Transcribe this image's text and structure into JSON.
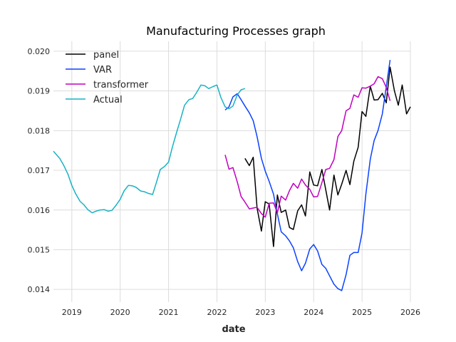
{
  "chart_data": {
    "type": "line",
    "title": "Manufacturing Processes graph",
    "xlabel": "date",
    "ylabel": "",
    "x_ticks": [
      "2019",
      "2020",
      "2021",
      "2022",
      "2023",
      "2024",
      "2025",
      "2026"
    ],
    "y_ticks": [
      "0.014",
      "0.015",
      "0.016",
      "0.017",
      "0.018",
      "0.019",
      "0.020"
    ],
    "xlim": [
      2018.62,
      2026.0
    ],
    "ylim": [
      0.01368,
      0.02025
    ],
    "grid": true,
    "legend_position": "top-left",
    "series": [
      {
        "name": "panel",
        "color": "#000000",
        "points": [
          [
            2022.58,
            0.0173
          ],
          [
            2022.67,
            0.01712
          ],
          [
            2022.75,
            0.01733
          ],
          [
            2022.83,
            0.01605
          ],
          [
            2022.92,
            0.01547
          ],
          [
            2023.0,
            0.01621
          ],
          [
            2023.08,
            0.01615
          ],
          [
            2023.17,
            0.01508
          ],
          [
            2023.25,
            0.01638
          ],
          [
            2023.33,
            0.01594
          ],
          [
            2023.42,
            0.016
          ],
          [
            2023.5,
            0.01556
          ],
          [
            2023.58,
            0.01551
          ],
          [
            2023.67,
            0.01598
          ],
          [
            2023.75,
            0.01613
          ],
          [
            2023.83,
            0.01585
          ],
          [
            2023.92,
            0.01696
          ],
          [
            2024.0,
            0.01663
          ],
          [
            2024.08,
            0.01661
          ],
          [
            2024.17,
            0.01702
          ],
          [
            2024.25,
            0.01651
          ],
          [
            2024.33,
            0.016
          ],
          [
            2024.42,
            0.01688
          ],
          [
            2024.5,
            0.01638
          ],
          [
            2024.58,
            0.01665
          ],
          [
            2024.67,
            0.017
          ],
          [
            2024.75,
            0.01664
          ],
          [
            2024.83,
            0.01723
          ],
          [
            2024.92,
            0.01758
          ],
          [
            2025.0,
            0.01848
          ],
          [
            2025.08,
            0.01836
          ],
          [
            2025.17,
            0.01912
          ],
          [
            2025.25,
            0.01877
          ],
          [
            2025.33,
            0.01878
          ],
          [
            2025.42,
            0.01894
          ],
          [
            2025.5,
            0.0187
          ],
          [
            2025.58,
            0.0196
          ],
          [
            2025.67,
            0.019
          ],
          [
            2025.75,
            0.01864
          ],
          [
            2025.83,
            0.01915
          ],
          [
            2025.92,
            0.01842
          ],
          [
            2026.0,
            0.0186
          ]
        ]
      },
      {
        "name": "VAR",
        "color": "#0a42ff",
        "points": [
          [
            2022.17,
            0.01852
          ],
          [
            2022.25,
            0.0186
          ],
          [
            2022.33,
            0.01885
          ],
          [
            2022.42,
            0.01893
          ],
          [
            2022.5,
            0.01878
          ],
          [
            2022.58,
            0.01862
          ],
          [
            2022.67,
            0.01845
          ],
          [
            2022.75,
            0.01825
          ],
          [
            2022.83,
            0.01785
          ],
          [
            2022.92,
            0.0173
          ],
          [
            2023.0,
            0.01698
          ],
          [
            2023.08,
            0.01672
          ],
          [
            2023.17,
            0.0164
          ],
          [
            2023.25,
            0.0159
          ],
          [
            2023.33,
            0.01545
          ],
          [
            2023.42,
            0.01535
          ],
          [
            2023.5,
            0.01522
          ],
          [
            2023.58,
            0.01505
          ],
          [
            2023.67,
            0.0147
          ],
          [
            2023.75,
            0.01447
          ],
          [
            2023.83,
            0.01466
          ],
          [
            2023.92,
            0.01502
          ],
          [
            2024.0,
            0.01513
          ],
          [
            2024.08,
            0.01497
          ],
          [
            2024.17,
            0.01463
          ],
          [
            2024.25,
            0.01453
          ],
          [
            2024.33,
            0.01434
          ],
          [
            2024.42,
            0.01413
          ],
          [
            2024.5,
            0.01402
          ],
          [
            2024.58,
            0.01397
          ],
          [
            2024.67,
            0.01437
          ],
          [
            2024.75,
            0.01486
          ],
          [
            2024.83,
            0.01493
          ],
          [
            2024.92,
            0.01493
          ],
          [
            2025.0,
            0.01542
          ],
          [
            2025.08,
            0.0164
          ],
          [
            2025.17,
            0.01728
          ],
          [
            2025.25,
            0.01775
          ],
          [
            2025.33,
            0.018
          ],
          [
            2025.42,
            0.01842
          ],
          [
            2025.5,
            0.0191
          ],
          [
            2025.58,
            0.01978
          ]
        ]
      },
      {
        "name": "transformer",
        "color": "#bf00bf",
        "points": [
          [
            2022.17,
            0.01739
          ],
          [
            2022.25,
            0.01703
          ],
          [
            2022.33,
            0.01707
          ],
          [
            2022.42,
            0.01671
          ],
          [
            2022.5,
            0.01634
          ],
          [
            2022.58,
            0.0162
          ],
          [
            2022.67,
            0.01603
          ],
          [
            2022.75,
            0.01605
          ],
          [
            2022.83,
            0.01607
          ],
          [
            2022.92,
            0.01591
          ],
          [
            2023.0,
            0.01582
          ],
          [
            2023.08,
            0.01617
          ],
          [
            2023.17,
            0.01618
          ],
          [
            2023.25,
            0.01593
          ],
          [
            2023.33,
            0.01635
          ],
          [
            2023.42,
            0.01625
          ],
          [
            2023.5,
            0.01649
          ],
          [
            2023.58,
            0.01667
          ],
          [
            2023.67,
            0.01655
          ],
          [
            2023.75,
            0.01678
          ],
          [
            2023.83,
            0.01663
          ],
          [
            2023.92,
            0.01652
          ],
          [
            2024.0,
            0.01633
          ],
          [
            2024.08,
            0.01634
          ],
          [
            2024.17,
            0.01669
          ],
          [
            2024.25,
            0.01702
          ],
          [
            2024.33,
            0.01705
          ],
          [
            2024.42,
            0.01727
          ],
          [
            2024.5,
            0.01785
          ],
          [
            2024.58,
            0.018
          ],
          [
            2024.67,
            0.0185
          ],
          [
            2024.75,
            0.01856
          ],
          [
            2024.83,
            0.0189
          ],
          [
            2024.92,
            0.01884
          ],
          [
            2025.0,
            0.01908
          ],
          [
            2025.08,
            0.01907
          ],
          [
            2025.17,
            0.01912
          ],
          [
            2025.25,
            0.01918
          ],
          [
            2025.33,
            0.01936
          ],
          [
            2025.42,
            0.01931
          ],
          [
            2025.5,
            0.01909
          ],
          [
            2025.58,
            0.01875
          ]
        ]
      },
      {
        "name": "Actual",
        "color": "#17b3c3",
        "points": [
          [
            2018.62,
            0.01748
          ],
          [
            2018.75,
            0.0173
          ],
          [
            2018.83,
            0.01713
          ],
          [
            2018.92,
            0.0169
          ],
          [
            2019.0,
            0.01662
          ],
          [
            2019.08,
            0.01641
          ],
          [
            2019.17,
            0.01622
          ],
          [
            2019.25,
            0.01613
          ],
          [
            2019.33,
            0.01601
          ],
          [
            2019.42,
            0.01593
          ],
          [
            2019.5,
            0.01597
          ],
          [
            2019.58,
            0.016
          ],
          [
            2019.67,
            0.01601
          ],
          [
            2019.75,
            0.01597
          ],
          [
            2019.83,
            0.01599
          ],
          [
            2019.92,
            0.01613
          ],
          [
            2020.0,
            0.01627
          ],
          [
            2020.08,
            0.01648
          ],
          [
            2020.17,
            0.01662
          ],
          [
            2020.25,
            0.01661
          ],
          [
            2020.33,
            0.01657
          ],
          [
            2020.42,
            0.01648
          ],
          [
            2020.5,
            0.01646
          ],
          [
            2020.58,
            0.01642
          ],
          [
            2020.67,
            0.01639
          ],
          [
            2020.75,
            0.0167
          ],
          [
            2020.83,
            0.01702
          ],
          [
            2020.92,
            0.0171
          ],
          [
            2021.0,
            0.01721
          ],
          [
            2021.08,
            0.01759
          ],
          [
            2021.17,
            0.01797
          ],
          [
            2021.25,
            0.01829
          ],
          [
            2021.33,
            0.01864
          ],
          [
            2021.42,
            0.01878
          ],
          [
            2021.5,
            0.01881
          ],
          [
            2021.58,
            0.01896
          ],
          [
            2021.67,
            0.01915
          ],
          [
            2021.75,
            0.01913
          ],
          [
            2021.83,
            0.01906
          ],
          [
            2021.92,
            0.01911
          ],
          [
            2022.0,
            0.01915
          ],
          [
            2022.08,
            0.01884
          ],
          [
            2022.17,
            0.0186
          ],
          [
            2022.25,
            0.01855
          ],
          [
            2022.33,
            0.01862
          ],
          [
            2022.42,
            0.0189
          ],
          [
            2022.5,
            0.01903
          ],
          [
            2022.58,
            0.01906
          ]
        ]
      }
    ]
  }
}
